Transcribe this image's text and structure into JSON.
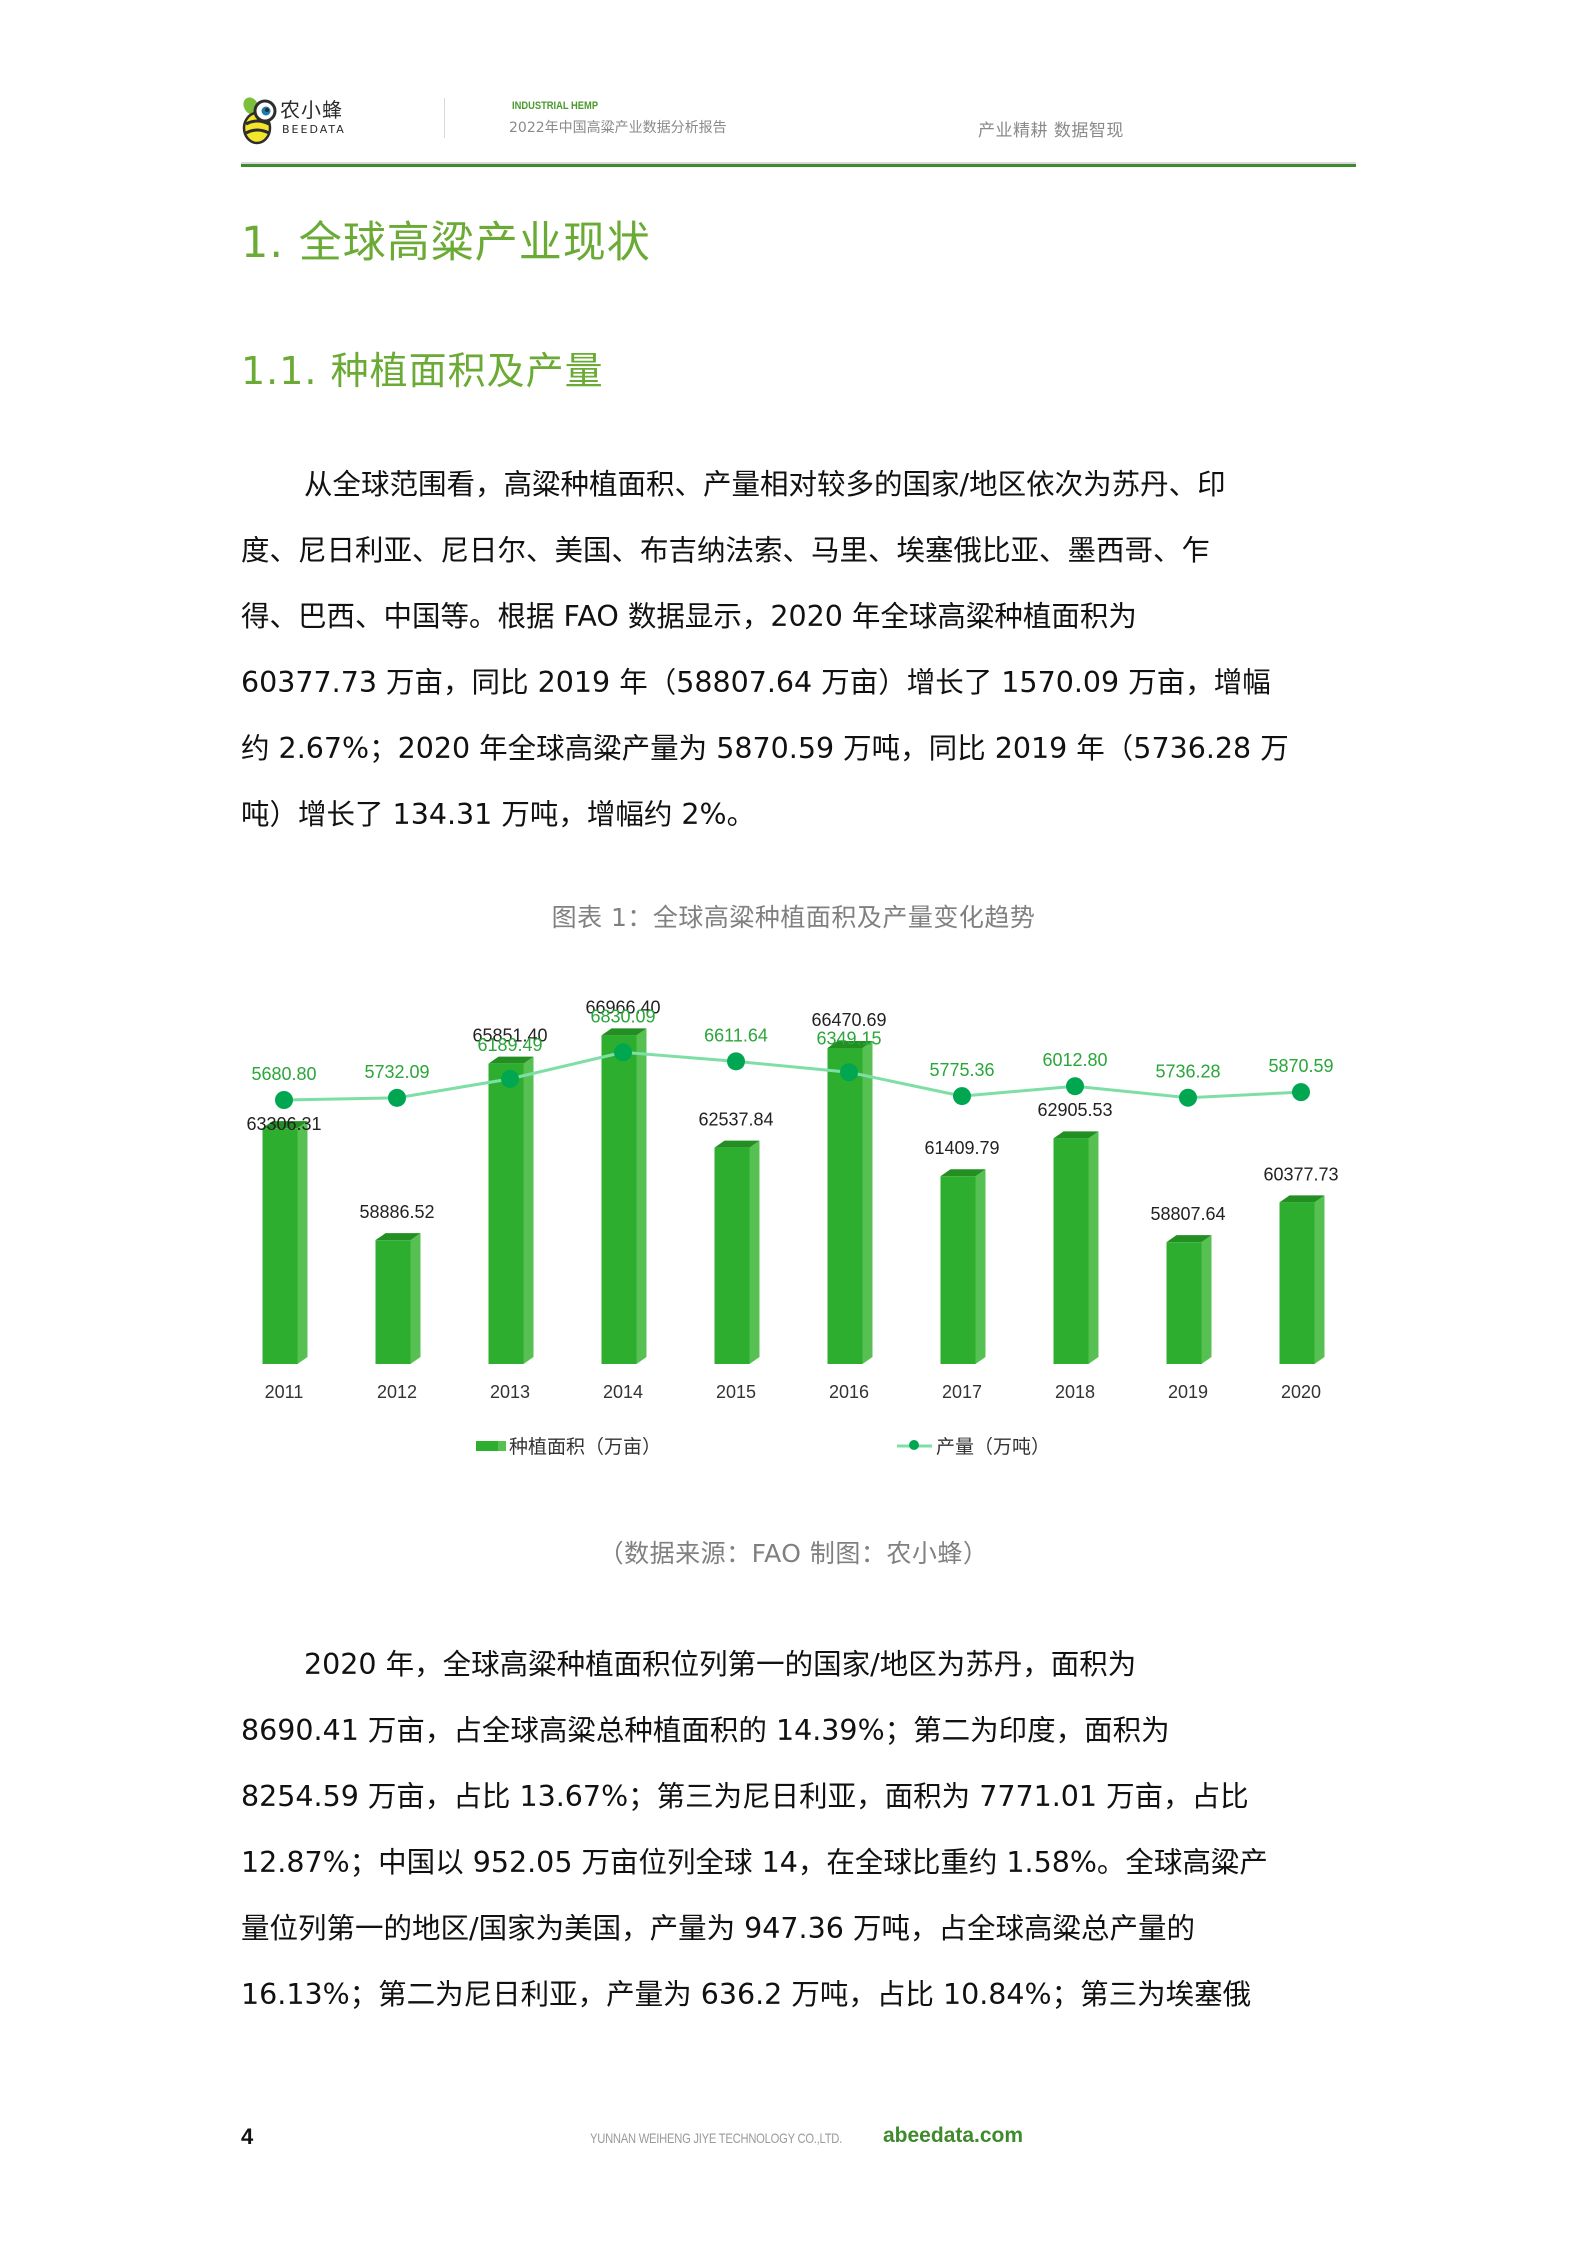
{
  "header": {
    "logo_cn": "农小蜂",
    "logo_en": "BEEDATA",
    "report_en": "INDUSTRIAL HEMP",
    "report_cn": "2022年中国高粱产业数据分析报告",
    "slogan": "产业精耕  数据智现"
  },
  "section": {
    "h1": "1. 全球高粱产业现状",
    "h2": "1.1. 种植面积及产量"
  },
  "paragraph1": {
    "lines": [
      "从全球范围看，高粱种植面积、产量相对较多的国家/地区依次为苏丹、印",
      "度、尼日利亚、尼日尔、美国、布吉纳法索、马里、埃塞俄比亚、墨西哥、乍",
      "得、巴西、中国等。根据 FAO 数据显示，2020 年全球高粱种植面积为",
      "60377.73 万亩，同比 2019 年（58807.64 万亩）增长了 1570.09 万亩，增幅",
      "约 2.67%；2020 年全球高粱产量为 5870.59 万吨，同比 2019 年（5736.28 万",
      "吨）增长了 134.31 万吨，增幅约 2%。"
    ]
  },
  "figure": {
    "caption": "图表 1：全球高粱种植面积及产量变化趋势",
    "source": "（数据来源：FAO    制图：农小蜂）"
  },
  "chart_data": {
    "type": "bar+line",
    "title": "图表 1：全球高粱种植面积及产量变化趋势",
    "categories": [
      "2011",
      "2012",
      "2013",
      "2014",
      "2015",
      "2016",
      "2017",
      "2018",
      "2019",
      "2020"
    ],
    "series": [
      {
        "name": "种植面积（万亩）",
        "type": "bar",
        "color": "#2eae2e",
        "values": [
          63306.31,
          58886.52,
          65851.4,
          66966.4,
          62537.84,
          66470.69,
          61409.79,
          62905.53,
          58807.64,
          60377.73
        ],
        "labels": [
          "63306.31",
          "58886.52",
          "65851.40",
          "66966.40",
          "62537.84",
          "66470.69",
          "61409.79",
          "62905.53",
          "58807.64",
          "60377.73"
        ]
      },
      {
        "name": "产量（万吨）",
        "type": "line",
        "color": "#00a650",
        "line_color": "#7ddfa6",
        "label_color": "#2aa63a",
        "values": [
          5680.8,
          5732.09,
          6189.49,
          6830.09,
          6611.64,
          6349.15,
          5775.36,
          6012.8,
          5736.28,
          5870.59
        ],
        "labels": [
          "5680.80",
          "5732.09",
          "6189.49",
          "6830.09",
          "6611.64",
          "6349.15",
          "5775.36",
          "6012.80",
          "5736.28",
          "5870.59"
        ]
      }
    ],
    "xlabel": "",
    "ylabel": "",
    "grid": false,
    "legend_position": "bottom"
  },
  "paragraph2": {
    "lines": [
      "2020 年，全球高粱种植面积位列第一的国家/地区为苏丹，面积为",
      "8690.41 万亩，占全球高粱总种植面积的 14.39%；第二为印度，面积为",
      "8254.59 万亩，占比 13.67%；第三为尼日利亚，面积为 7771.01 万亩，占比",
      "12.87%；中国以 952.05 万亩位列全球 14，在全球比重约 1.58%。全球高粱产",
      "量位列第一的地区/国家为美国，产量为 947.36 万吨，占全球高粱总产量的",
      "16.13%；第二为尼日利亚，产量为 636.2 万吨，占比 10.84%；第三为埃塞俄"
    ]
  },
  "footer": {
    "page_number": "4",
    "company": "YUNNAN WEIHENG JIYE TECHNOLOGY CO.,LTD.",
    "url": "abeedata.com"
  }
}
